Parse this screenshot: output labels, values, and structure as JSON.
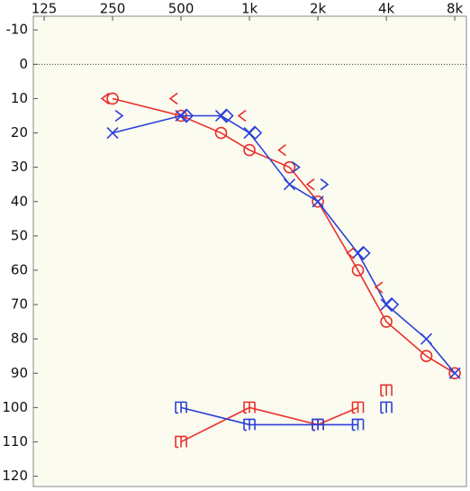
{
  "chart_data": {
    "type": "audiogram",
    "xscale": "log",
    "xlim": [
      112,
      9000
    ],
    "xticks": [
      125,
      250,
      500,
      {
        "value": 1000,
        "label": "1k"
      },
      {
        "value": 2000,
        "label": "2k"
      },
      {
        "value": 4000,
        "label": "4k"
      },
      {
        "value": 8000,
        "label": "8k"
      }
    ],
    "ylim": [
      123,
      -14
    ],
    "yticks": [
      -10,
      0,
      10,
      20,
      30,
      40,
      50,
      60,
      70,
      80,
      90,
      100,
      110,
      120
    ],
    "reference_line": 0,
    "series": [
      {
        "color": "#e8312b",
        "marker": "circle",
        "line": true,
        "x": [
          250,
          500,
          750,
          1000,
          1500,
          2000,
          3000,
          4000,
          6000,
          8000
        ],
        "values": [
          10,
          15,
          20,
          25,
          30,
          40,
          60,
          75,
          85,
          90
        ]
      },
      {
        "color": "#2b3fd8",
        "marker": "cross",
        "line": true,
        "x": [
          250,
          500,
          750,
          1000,
          1500,
          2000,
          3000,
          4000,
          6000,
          8000
        ],
        "values": [
          20,
          15,
          15,
          20,
          35,
          40,
          55,
          70,
          80,
          90
        ]
      },
      {
        "color": "#2b3fd8",
        "marker": "diamond",
        "line": false,
        "x": [
          500,
          750,
          1000,
          3000,
          4000
        ],
        "values": [
          15,
          15,
          20,
          55,
          70
        ]
      },
      {
        "color": "#2b3fd8",
        "marker": "gt",
        "line": false,
        "x": [
          250,
          1500,
          2000
        ],
        "values": [
          15,
          30,
          35
        ]
      },
      {
        "color": "#e8312b",
        "marker": "lt",
        "line": false,
        "x": [
          250,
          500,
          1000,
          1500,
          2000,
          3000,
          4000
        ],
        "values": [
          10,
          10,
          15,
          25,
          35,
          55,
          65
        ]
      },
      {
        "color": "#e8312b",
        "marker": "bracket",
        "line": true,
        "x": [
          500,
          1000,
          2000,
          3000
        ],
        "values": [
          110,
          100,
          105,
          100
        ]
      },
      {
        "color": "#e8312b",
        "marker": "bracket",
        "line": false,
        "x": [
          4000
        ],
        "values": [
          95
        ]
      },
      {
        "color": "#2b3fd8",
        "marker": "bracket",
        "line": true,
        "x": [
          500,
          1000,
          2000,
          3000
        ],
        "values": [
          100,
          105,
          105,
          105
        ]
      },
      {
        "color": "#2b3fd8",
        "marker": "bracket",
        "line": false,
        "x": [
          4000
        ],
        "values": [
          100
        ]
      }
    ]
  }
}
